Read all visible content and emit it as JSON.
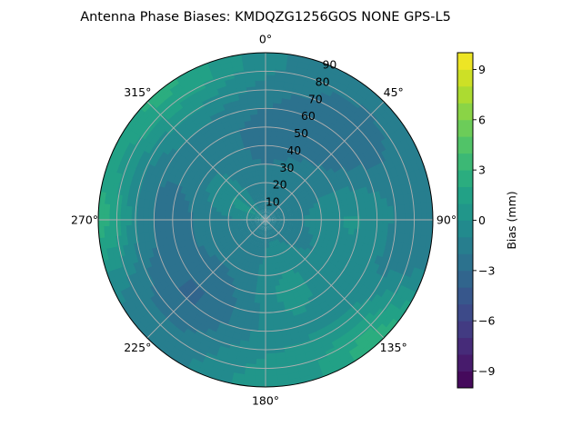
{
  "chart_data": {
    "type": "heatmap",
    "projection": "polar",
    "title": "Antenna Phase Biases: KMDQZG1256GOS   NONE GPS-L5",
    "theta_direction": "clockwise",
    "theta_zero": "top",
    "angle_ticks": [
      {
        "deg": 0,
        "label": "0°"
      },
      {
        "deg": 45,
        "label": "45°"
      },
      {
        "deg": 90,
        "label": "90°"
      },
      {
        "deg": 135,
        "label": "135°"
      },
      {
        "deg": 180,
        "label": "180°"
      },
      {
        "deg": 225,
        "label": "225°"
      },
      {
        "deg": 270,
        "label": "270°"
      },
      {
        "deg": 315,
        "label": "315°"
      }
    ],
    "radial_ticks": [
      10,
      20,
      30,
      40,
      50,
      60,
      70,
      80,
      90
    ],
    "radial_label_angle_deg": 22.5,
    "r_lim": [
      0,
      90
    ],
    "grid": true,
    "colorbar": {
      "label": "Bias (mm)",
      "vmin": -10,
      "vmax": 10,
      "levels": 20,
      "ticks": [
        -9,
        -6,
        -3,
        0,
        3,
        6,
        9
      ],
      "tick_labels": [
        "−9",
        "−6",
        "−3",
        "0",
        "3",
        "6",
        "9"
      ],
      "colormap": "viridis",
      "position": "right"
    },
    "surface": {
      "base": -1.3,
      "components": [
        {
          "theta_deg": 135,
          "r": 90,
          "amp": 4.0,
          "spread_deg": 18
        },
        {
          "theta_deg": 320,
          "r": 90,
          "amp": 3.5,
          "spread_deg": 24
        },
        {
          "theta_deg": 270,
          "r": 92,
          "amp": 3.5,
          "spread_deg": 14
        },
        {
          "theta_deg": 90,
          "r": 50,
          "amp": 1.6,
          "spread_deg": 20
        },
        {
          "theta_deg": 160,
          "r": 40,
          "amp": 1.6,
          "spread_deg": 18
        },
        {
          "theta_deg": 180,
          "r": 85,
          "amp": 1.6,
          "spread_deg": 18
        },
        {
          "theta_deg": 300,
          "r": 15,
          "amp": 1.5,
          "spread_deg": 16
        },
        {
          "theta_deg": 45,
          "r": 60,
          "amp": -1.6,
          "spread_deg": 22
        },
        {
          "theta_deg": 225,
          "r": 55,
          "amp": -1.8,
          "spread_deg": 22
        },
        {
          "theta_deg": 280,
          "r": 55,
          "amp": -1.2,
          "spread_deg": 18
        },
        {
          "theta_deg": 0,
          "r": 45,
          "amp": -1.0,
          "spread_deg": 20
        },
        {
          "theta_deg": 110,
          "r": 80,
          "amp": -1.2,
          "spread_deg": 16
        }
      ]
    }
  }
}
